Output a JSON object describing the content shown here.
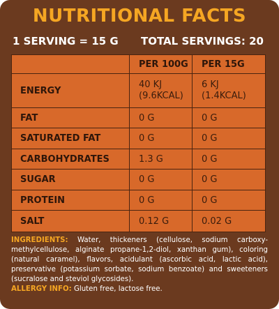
{
  "title": "NUTRITIONAL FACTS",
  "serving": {
    "left": "1 SERVING = 15 G",
    "right": "TOTAL SERVINGS: 20"
  },
  "table": {
    "headers": [
      "",
      "PER 100G",
      "PER 15G"
    ],
    "rows": [
      {
        "label": "ENERGY",
        "per100": [
          "40 KJ",
          "(9.6KCAL)"
        ],
        "per15": [
          "6 KJ",
          "(1.4KCAL)"
        ]
      },
      {
        "label": "FAT",
        "per100": [
          "0 G"
        ],
        "per15": [
          "0 G"
        ]
      },
      {
        "label": "SATURATED FAT",
        "per100": [
          "0 G"
        ],
        "per15": [
          "0 G"
        ]
      },
      {
        "label": "CARBOHYDRATES",
        "per100": [
          "1.3 G"
        ],
        "per15": [
          "0 G"
        ]
      },
      {
        "label": "SUGAR",
        "per100": [
          "0 G"
        ],
        "per15": [
          "0 G"
        ]
      },
      {
        "label": "PROTEIN",
        "per100": [
          "0 G"
        ],
        "per15": [
          "0 G"
        ]
      },
      {
        "label": "SALT",
        "per100": [
          "0.12 G"
        ],
        "per15": [
          "0.02 G"
        ]
      }
    ]
  },
  "ingredients": {
    "label": "INGREDIENTS:",
    "text": "Water, thickeners (cellulose, sodium carboxy-methylcellulose, alginate propane-1,2-diol, xanthan gum), coloring (natural caramel), flavors, acidulant (ascorbic acid, lactic acid), preservative (potassium sorbate, sodium benzoate) and sweeteners (sucralose and steviol glycosides)."
  },
  "allergy": {
    "label": "ALLERGY INFO:",
    "text": "Gluten free, lactose free."
  },
  "colors": {
    "panel": "#6b3a1f",
    "accent": "#f5a623",
    "table": "#d8692a"
  }
}
